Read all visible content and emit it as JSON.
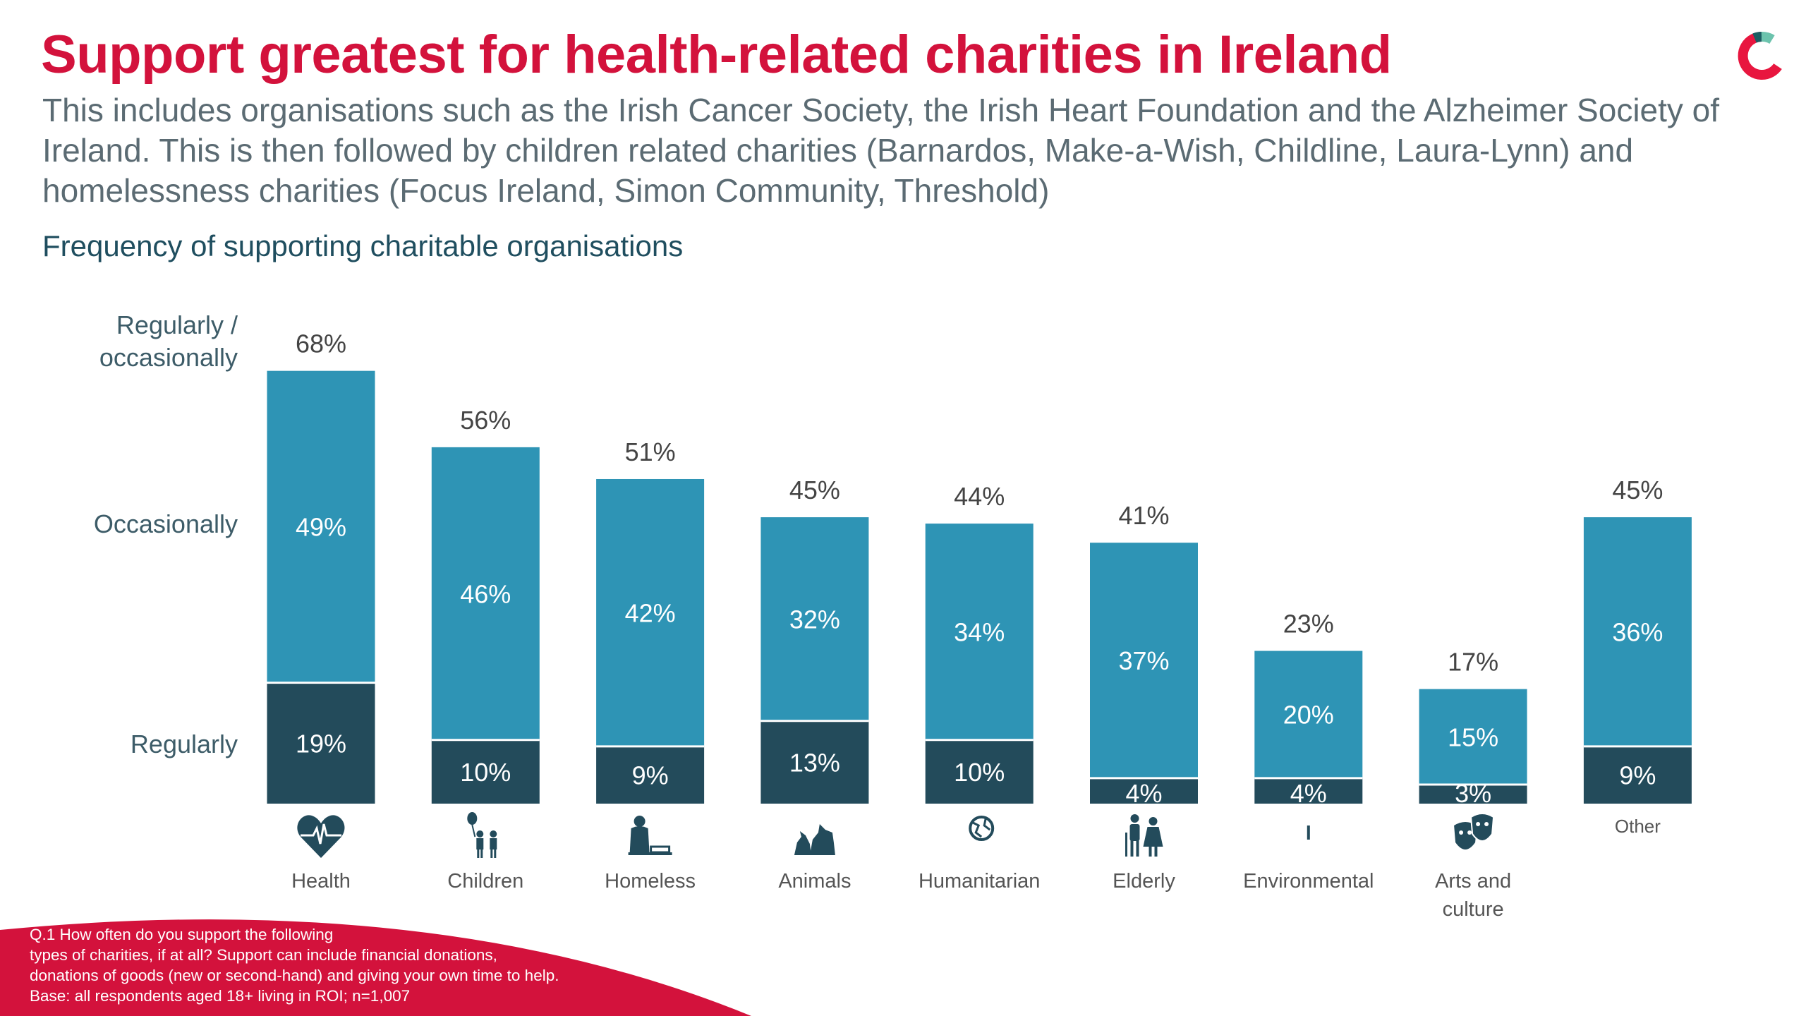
{
  "header": {
    "title": "Support greatest for health-related charities in Ireland",
    "subtitle": "This includes organisations such as the Irish Cancer Society, the Irish Heart Foundation and the Alzheimer Society of Ireland. This is then followed by children related charities (Barnardos, Make-a-Wish, Childline, Laura-Lynn) and homelessness charities (Focus Ireland, Simon Community, Threshold)",
    "chart_title": "Frequency of supporting charitable organisations"
  },
  "colors": {
    "title": "#d3123c",
    "regularly": "#234b5b",
    "occasionally": "#2e94b5",
    "footer": "#d3123c"
  },
  "chart_data": {
    "type": "bar",
    "stacked": true,
    "title": "Frequency of supporting charitable organisations",
    "categories": [
      "Health",
      "Children",
      "Homeless",
      "Animals",
      "Humanitarian",
      "Elderly",
      "Environmental",
      "Arts and culture",
      "Other"
    ],
    "icons": [
      "heart-pulse-icon",
      "children-balloon-icon",
      "homeless-person-icon",
      "animals-icon",
      "humanitarian-globe-hand-icon",
      "elderly-couple-icon",
      "environmental-plant-hand-icon",
      "arts-theatre-masks-icon",
      ""
    ],
    "series": [
      {
        "name": "Regularly",
        "values": [
          19,
          10,
          9,
          13,
          10,
          4,
          4,
          3,
          9
        ]
      },
      {
        "name": "Occasionally",
        "values": [
          49,
          46,
          42,
          32,
          34,
          37,
          20,
          15,
          36
        ]
      }
    ],
    "totals_label": "Regularly / occasionally",
    "totals": [
      68,
      56,
      51,
      45,
      44,
      41,
      23,
      17,
      45
    ],
    "unit": "%",
    "ylim": [
      0,
      70
    ],
    "grid": false,
    "legend": "left"
  },
  "axis_labels": {
    "total": "Regularly /\noccasionally",
    "occasionally": "Occasionally",
    "regularly": "Regularly"
  },
  "footer": {
    "note": "Q.1 How often do you support the following\ntypes of charities, if at all? Support can include financial donations,\ndonations of goods (new or second-hand) and giving your own time to help.\nBase: all respondents aged 18+ living in ROI; n=1,007"
  }
}
